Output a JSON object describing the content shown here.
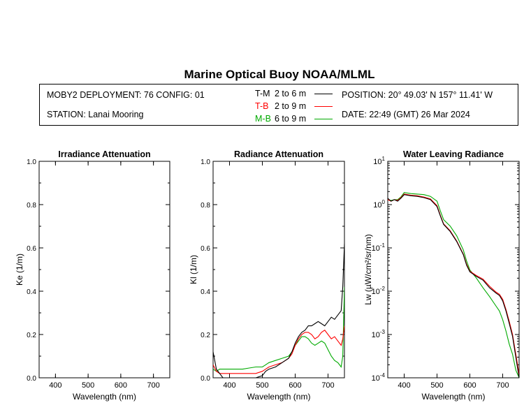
{
  "header": {
    "title": "Marine Optical Buoy NOAA/MLML",
    "deployment": "MOBY2 DEPLOYMENT: 76 CONFIG: 01",
    "station": "STATION: Lanai Mooring",
    "position": "POSITION: 20° 49.03' N   157° 11.41' W",
    "date": "DATE: 22:49 (GMT) 26 Mar 2024",
    "legend": [
      {
        "code": "T-M",
        "range": "2 to 6  m",
        "color": "#000000"
      },
      {
        "code": "T-B",
        "range": "2 to 9  m",
        "color": "#ff0000"
      },
      {
        "code": "M-B",
        "range": "6 to 9  m",
        "color": "#00aa00"
      }
    ]
  },
  "chart_data": [
    {
      "type": "line",
      "title": "Irradiance Attenuation",
      "xlabel": "Wavelength (nm)",
      "ylabel": "Ke  (1/m)",
      "xlim": [
        350,
        750
      ],
      "ylim": [
        0,
        1
      ],
      "x_ticks": [
        400,
        500,
        600,
        700
      ],
      "y_ticks": [
        0.0,
        0.2,
        0.4,
        0.6,
        0.8,
        1.0
      ],
      "y_tick_labels": [
        "0.0",
        "0.2",
        "0.4",
        "0.6",
        "0.8",
        "1.0"
      ],
      "series": []
    },
    {
      "type": "line",
      "title": "Radiance Attenuation",
      "xlabel": "Wavelength (nm)",
      "ylabel": "Kl  (1/m)",
      "xlim": [
        350,
        750
      ],
      "ylim": [
        0,
        1
      ],
      "x_ticks": [
        400,
        500,
        600,
        700
      ],
      "y_ticks": [
        0.0,
        0.2,
        0.4,
        0.6,
        0.8,
        1.0
      ],
      "y_tick_labels": [
        "0.0",
        "0.2",
        "0.4",
        "0.6",
        "0.8",
        "1.0"
      ],
      "x": [
        350,
        360,
        370,
        380,
        400,
        420,
        440,
        460,
        480,
        500,
        510,
        520,
        540,
        560,
        580,
        590,
        600,
        610,
        620,
        630,
        640,
        650,
        660,
        670,
        680,
        690,
        700,
        710,
        720,
        730,
        740,
        745,
        750
      ],
      "series": [
        {
          "name": "T-M",
          "color": "#000000",
          "values": [
            0.12,
            0.04,
            0.02,
            0.0,
            0.0,
            0.0,
            0.0,
            0.0,
            0.0,
            0.01,
            0.03,
            0.04,
            0.05,
            0.07,
            0.09,
            0.12,
            0.16,
            0.19,
            0.21,
            0.22,
            0.24,
            0.24,
            0.25,
            0.26,
            0.25,
            0.24,
            0.26,
            0.28,
            0.27,
            0.29,
            0.31,
            0.42,
            0.62
          ]
        },
        {
          "name": "T-B",
          "color": "#ff0000",
          "values": [
            0.06,
            0.03,
            0.02,
            0.02,
            0.02,
            0.02,
            0.02,
            0.02,
            0.02,
            0.03,
            0.04,
            0.05,
            0.06,
            0.07,
            0.09,
            0.11,
            0.15,
            0.18,
            0.2,
            0.21,
            0.21,
            0.2,
            0.18,
            0.19,
            0.21,
            0.22,
            0.2,
            0.18,
            0.19,
            0.17,
            0.15,
            0.18,
            0.24
          ]
        },
        {
          "name": "M-B",
          "color": "#00aa00",
          "values": [
            0.04,
            0.03,
            0.04,
            0.04,
            0.04,
            0.04,
            0.04,
            0.045,
            0.05,
            0.05,
            0.06,
            0.07,
            0.08,
            0.09,
            0.1,
            0.12,
            0.15,
            0.17,
            0.19,
            0.19,
            0.18,
            0.16,
            0.15,
            0.16,
            0.17,
            0.16,
            0.13,
            0.1,
            0.08,
            0.07,
            0.05,
            0.1,
            0.42
          ]
        }
      ]
    },
    {
      "type": "line",
      "title": "Water Leaving Radiance",
      "xlabel": "Wavelength (nm)",
      "ylabel": "Lw  (µW/cm²/sr/nm)",
      "y_scale": "log",
      "xlim": [
        350,
        750
      ],
      "ylim": [
        0.0001,
        10
      ],
      "x_ticks": [
        400,
        500,
        600,
        700
      ],
      "y_ticks": [
        0.0001,
        0.001,
        0.01,
        0.1,
        1,
        10
      ],
      "y_tick_labels": [
        [
          "10",
          "-4"
        ],
        [
          "10",
          "-3"
        ],
        [
          "10",
          "-2"
        ],
        [
          "10",
          "-1"
        ],
        [
          "10",
          "0"
        ],
        [
          "10",
          "1"
        ]
      ],
      "x": [
        350,
        360,
        370,
        380,
        390,
        400,
        420,
        440,
        460,
        480,
        500,
        510,
        520,
        540,
        560,
        580,
        590,
        600,
        620,
        640,
        660,
        680,
        690,
        700,
        710,
        720,
        730,
        740,
        750
      ],
      "series": [
        {
          "name": "T-M",
          "color": "#000000",
          "values": [
            1.4,
            1.2,
            1.3,
            1.2,
            1.4,
            1.7,
            1.6,
            1.55,
            1.45,
            1.3,
            0.9,
            0.55,
            0.35,
            0.24,
            0.14,
            0.07,
            0.04,
            0.028,
            0.022,
            0.018,
            0.012,
            0.009,
            0.008,
            0.006,
            0.0035,
            0.0018,
            0.0009,
            0.0003,
            0.0001
          ]
        },
        {
          "name": "T-B",
          "color": "#ff0000",
          "values": [
            1.3,
            1.2,
            1.3,
            1.25,
            1.45,
            1.75,
            1.65,
            1.6,
            1.5,
            1.35,
            0.95,
            0.57,
            0.36,
            0.25,
            0.145,
            0.072,
            0.042,
            0.029,
            0.023,
            0.019,
            0.013,
            0.0095,
            0.0085,
            0.0065,
            0.0038,
            0.002,
            0.001,
            0.00035,
            0.00012
          ]
        },
        {
          "name": "M-B",
          "color": "#00aa00",
          "values": [
            1.3,
            1.25,
            1.3,
            1.3,
            1.5,
            1.9,
            1.8,
            1.75,
            1.7,
            1.55,
            1.2,
            0.72,
            0.45,
            0.32,
            0.19,
            0.09,
            0.05,
            0.031,
            0.02,
            0.012,
            0.0075,
            0.0045,
            0.0035,
            0.0022,
            0.0012,
            0.0006,
            0.00035,
            0.00015,
            0.0001
          ]
        }
      ]
    }
  ]
}
